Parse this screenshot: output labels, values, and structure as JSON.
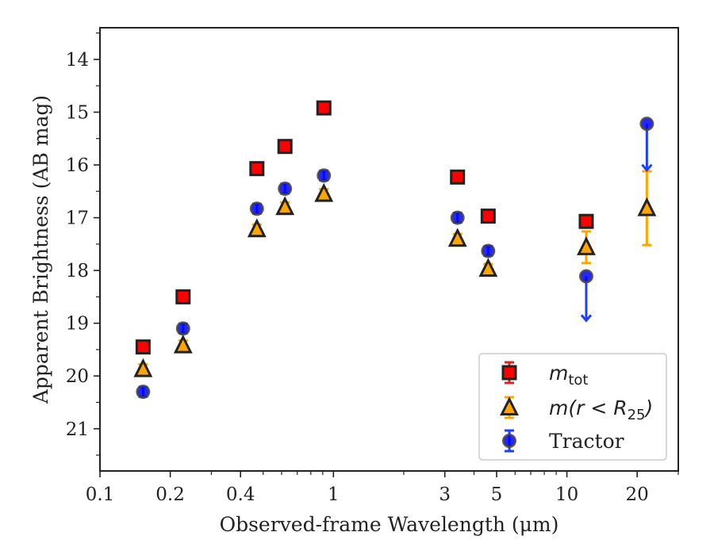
{
  "chart_data": {
    "type": "scatter",
    "title": "",
    "xlabel": "Observed-frame Wavelength (μm)",
    "ylabel": "Apparent Brightness (AB mag)",
    "xscale": "log",
    "xlim": [
      0.1,
      30
    ],
    "ylim": [
      21.8,
      13.4
    ],
    "y_inverted": true,
    "x_tick_labels": [
      "0.1",
      "0.2",
      "0.4",
      "1",
      "3",
      "5",
      "10",
      "20"
    ],
    "y_tick_labels": [
      "14",
      "15",
      "16",
      "17",
      "18",
      "19",
      "20",
      "21"
    ],
    "grid": false,
    "legend_position": "lower-right",
    "legend": [
      {
        "key": "mtot",
        "base": "m",
        "sub": "tot",
        "text": ""
      },
      {
        "key": "mr25",
        "base": "m",
        "sub": "",
        "text": "m(r < R25)",
        "pre": "m(r < R",
        "post": ")",
        "sub2": "25"
      },
      {
        "key": "tractor",
        "base": "",
        "sub": "",
        "text": "Tractor"
      }
    ],
    "series": [
      {
        "key": "mtot",
        "marker": "square",
        "color": "#ff0000",
        "edge": "#222222",
        "errcolor": "#d62728",
        "x": [
          0.153,
          0.227,
          0.47,
          0.62,
          0.91,
          3.4,
          4.6,
          12.1
        ],
        "y": [
          19.45,
          18.5,
          16.07,
          15.65,
          14.92,
          16.23,
          16.97,
          17.07
        ],
        "yerr": [
          0.02,
          0.02,
          0.02,
          0.02,
          0.02,
          0.02,
          0.02,
          0.05
        ]
      },
      {
        "key": "mr25",
        "marker": "triangle",
        "color": "#ffa500",
        "edge": "#222222",
        "errcolor": "#ffa500",
        "x": [
          0.153,
          0.227,
          0.47,
          0.62,
          0.91,
          3.4,
          4.6,
          12.1,
          22.0
        ],
        "y": [
          19.87,
          19.42,
          17.22,
          16.8,
          16.55,
          17.4,
          17.97,
          17.56,
          16.82
        ],
        "yerr": [
          0.02,
          0.02,
          0.02,
          0.02,
          0.02,
          0.02,
          0.02,
          0.3,
          0.7
        ]
      },
      {
        "key": "tractor",
        "marker": "circle",
        "color": "#0000ff",
        "edge": "#444444",
        "errcolor": "#1f3fff",
        "x": [
          0.153,
          0.227,
          0.47,
          0.62,
          0.91,
          3.4,
          4.6,
          12.1,
          22.0
        ],
        "y": [
          20.3,
          19.1,
          16.83,
          16.45,
          16.2,
          17.0,
          17.63,
          18.11,
          15.22
        ],
        "yerr": [
          0.05,
          0.08,
          0.08,
          0.06,
          0.05,
          0.06,
          0.05,
          0.05,
          0.05
        ],
        "upper_limit": [
          false,
          false,
          false,
          false,
          false,
          false,
          false,
          true,
          true
        ],
        "limit_arrow_to": [
          null,
          null,
          null,
          null,
          null,
          null,
          null,
          18.95,
          16.1
        ]
      }
    ]
  }
}
